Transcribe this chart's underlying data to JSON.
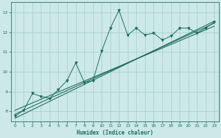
{
  "title": "",
  "xlabel": "Humidex (Indice chaleur)",
  "ylabel": "",
  "xlim": [
    -0.5,
    23.5
  ],
  "ylim": [
    7.5,
    13.5
  ],
  "yticks": [
    8,
    9,
    10,
    11,
    12,
    13
  ],
  "xticks": [
    0,
    1,
    2,
    3,
    4,
    5,
    6,
    7,
    8,
    9,
    10,
    11,
    12,
    13,
    14,
    15,
    16,
    17,
    18,
    19,
    20,
    21,
    22,
    23
  ],
  "bg_color": "#cce8e8",
  "grid_color": "#aad0d0",
  "line_color": "#1a6b5a",
  "data_x": [
    0,
    1,
    2,
    3,
    4,
    5,
    6,
    7,
    8,
    9,
    10,
    11,
    12,
    13,
    14,
    15,
    16,
    17,
    18,
    19,
    20,
    21,
    22,
    23
  ],
  "data_y": [
    7.75,
    8.05,
    8.9,
    8.75,
    8.65,
    9.1,
    9.55,
    10.45,
    9.45,
    9.55,
    11.05,
    12.2,
    13.1,
    11.85,
    12.2,
    11.85,
    11.95,
    11.6,
    11.8,
    12.2,
    12.2,
    11.95,
    12.2,
    12.5
  ],
  "trend1_x": [
    0,
    23
  ],
  "trend1_y": [
    7.85,
    12.45
  ],
  "trend2_x": [
    0,
    23
  ],
  "trend2_y": [
    8.05,
    12.3
  ],
  "trend3_x": [
    0,
    23
  ],
  "trend3_y": [
    7.65,
    12.55
  ]
}
